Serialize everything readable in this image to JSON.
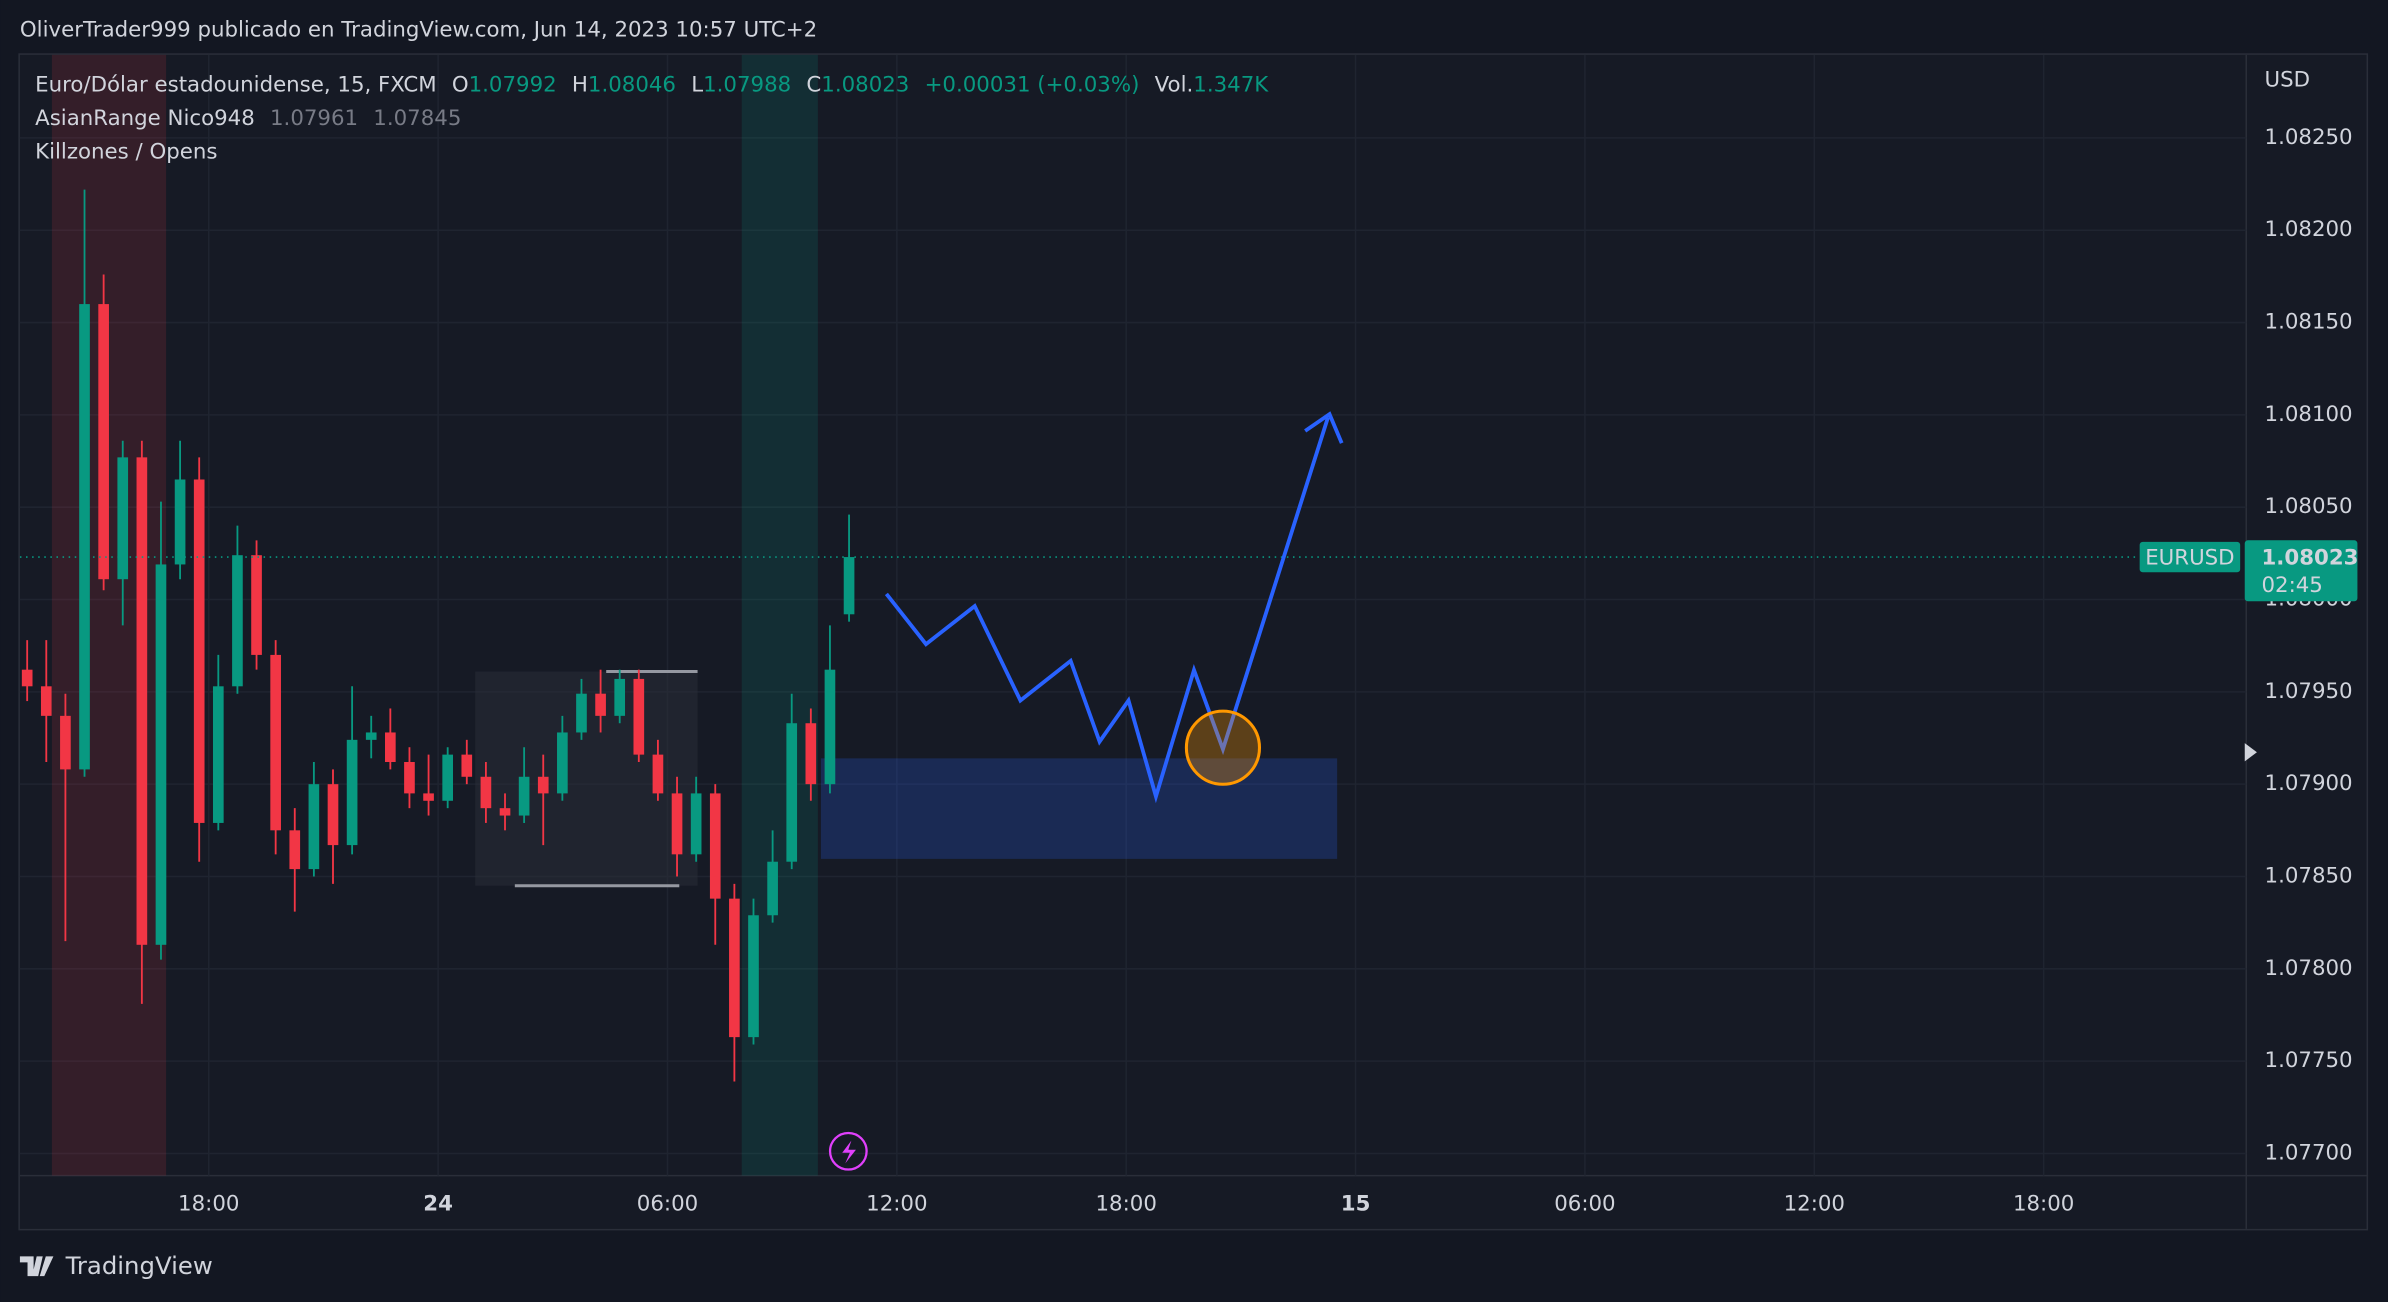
{
  "header": {
    "publisher": "OliverTrader999 publicado en TradingView.com, Jun 14, 2023 10:57 UTC+2",
    "brand": "TradingView"
  },
  "chart_data": {
    "type": "candlestick",
    "title": "Euro/Dólar estadounidense, 15, FXCM",
    "legend": [
      {
        "label": "O",
        "value": 1.07992
      },
      {
        "label": "H",
        "value": 1.08046
      },
      {
        "label": "L",
        "value": 1.07988
      },
      {
        "label": "C",
        "value": 1.08023
      }
    ],
    "change": "+0.00031 (+0.03%)",
    "volume_label": "Vol.",
    "volume": "1.347K",
    "indicators": [
      {
        "name": "AsianRange Nico948",
        "values": [
          1.07961,
          1.07845
        ]
      },
      {
        "name": "Killzones / Opens"
      }
    ],
    "currency": "USD",
    "price_label": {
      "symbol": "EURUSD",
      "value": 1.08023,
      "countdown": "02:45"
    },
    "up_color": "#089981",
    "down_color": "#f23645",
    "grid": true,
    "xlim": [
      13.06,
      71.3
    ],
    "xticks": [
      {
        "value": 18,
        "label": "18:00"
      },
      24,
      {
        "value": 30,
        "label": "06:00"
      },
      {
        "value": 36,
        "label": "12:00"
      },
      {
        "value": 42,
        "label": "18:00"
      },
      {
        "value": 48,
        "label": "15"
      },
      {
        "value": 54,
        "label": "06:00"
      },
      {
        "value": 60,
        "label": "12:00"
      },
      {
        "value": 66,
        "label": "18:00"
      }
    ],
    "ylim": [
      1.07688,
      1.08295
    ],
    "yticks": [
      {
        "value": 1.077,
        "label": "1.07700"
      },
      {
        "value": 1.0775,
        "label": "1.07750"
      },
      {
        "value": 1.078,
        "label": "1.07800"
      },
      {
        "value": 1.0785,
        "label": "1.07850"
      },
      {
        "value": 1.079,
        "label": "1.07900"
      },
      {
        "value": 1.0795,
        "label": "1.07950"
      },
      {
        "value": 1.08,
        "label": "1.08000"
      },
      {
        "value": 1.0805,
        "label": "1.08050"
      },
      {
        "value": 1.081,
        "label": "1.08100"
      },
      {
        "value": 1.0815,
        "label": "1.08150"
      },
      {
        "value": 1.082,
        "label": "1.08200"
      },
      {
        "value": 1.0825,
        "label": "1.08250"
      }
    ],
    "x": [
      13.25,
      13.75,
      14.25,
      14.75,
      15.25,
      15.75,
      16.25,
      16.75,
      17.25,
      17.75,
      18.25,
      18.75,
      19.25,
      19.75,
      20.25,
      20.75,
      21.25,
      21.75,
      22.25,
      22.75,
      23.25,
      23.75,
      24.25,
      24.75,
      25.25,
      25.75,
      26.25,
      26.75,
      27.25,
      27.75,
      28.25,
      28.75,
      29.25,
      29.75,
      30.25,
      30.75,
      31.25,
      31.75,
      32.25,
      32.75,
      33.25,
      33.75,
      34.25,
      34.75
    ],
    "open": [
      1.07962,
      1.07953,
      1.07937,
      1.07908,
      1.0816,
      1.08011,
      1.08077,
      1.07813,
      1.08019,
      1.08065,
      1.07879,
      1.07953,
      1.08024,
      1.0797,
      1.07875,
      1.07854,
      1.079,
      1.07867,
      1.07924,
      1.07928,
      1.07912,
      1.07895,
      1.07891,
      1.07916,
      1.07904,
      1.07887,
      1.07883,
      1.07904,
      1.07895,
      1.07928,
      1.07949,
      1.07937,
      1.07957,
      1.07916,
      1.07895,
      1.07862,
      1.07895,
      1.07838,
      1.07763,
      1.07829,
      1.07858,
      1.07933,
      1.079,
      1.07992
    ],
    "high": [
      1.07978,
      1.07978,
      1.07949,
      1.08222,
      1.08176,
      1.08086,
      1.08086,
      1.08053,
      1.08086,
      1.08077,
      1.0797,
      1.0804,
      1.08032,
      1.07978,
      1.07887,
      1.07912,
      1.07908,
      1.07953,
      1.07937,
      1.07941,
      1.0792,
      1.07916,
      1.0792,
      1.07924,
      1.07912,
      1.07895,
      1.0792,
      1.07916,
      1.07937,
      1.07957,
      1.07962,
      1.07962,
      1.07962,
      1.07924,
      1.07904,
      1.07904,
      1.079,
      1.07846,
      1.07838,
      1.07875,
      1.07949,
      1.07941,
      1.07986,
      1.08046
    ],
    "low": [
      1.07945,
      1.07912,
      1.07815,
      1.07904,
      1.08005,
      1.07986,
      1.07781,
      1.07805,
      1.08011,
      1.07858,
      1.07875,
      1.07949,
      1.07962,
      1.07862,
      1.07831,
      1.0785,
      1.07846,
      1.07862,
      1.07914,
      1.07908,
      1.07887,
      1.07883,
      1.07887,
      1.079,
      1.07879,
      1.07875,
      1.07879,
      1.07867,
      1.07891,
      1.07924,
      1.07928,
      1.07933,
      1.07912,
      1.07891,
      1.0785,
      1.07858,
      1.07813,
      1.07739,
      1.07759,
      1.07825,
      1.07854,
      1.07891,
      1.07895,
      1.07988
    ],
    "close": [
      1.07953,
      1.07937,
      1.07908,
      1.0816,
      1.08011,
      1.08077,
      1.07813,
      1.08019,
      1.08065,
      1.07879,
      1.07953,
      1.08024,
      1.0797,
      1.07875,
      1.07854,
      1.079,
      1.07867,
      1.07924,
      1.07928,
      1.07912,
      1.07895,
      1.07891,
      1.07916,
      1.07904,
      1.07887,
      1.07883,
      1.07904,
      1.07895,
      1.07928,
      1.07949,
      1.07937,
      1.07957,
      1.07916,
      1.07895,
      1.07862,
      1.07895,
      1.07838,
      1.07763,
      1.07829,
      1.07858,
      1.07933,
      1.079,
      1.07962,
      1.08023
    ]
  }
}
